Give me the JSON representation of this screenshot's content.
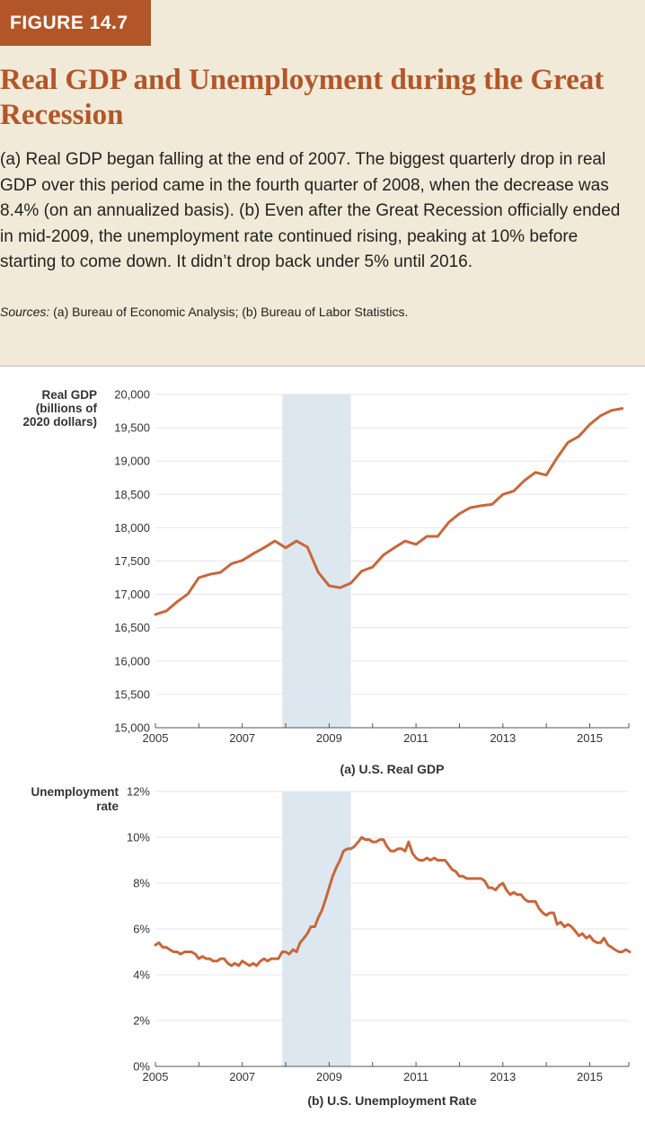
{
  "figure": {
    "label": "FIGURE 14.7",
    "title": "Real GDP and Unemployment during the Great Recession",
    "caption": "(a) Real GDP began falling at the end of 2007. The biggest quarterly drop in real GDP over this period came in the fourth quarter of 2008, when the decrease was 8.4% (on an annualized basis). (b) Even after the Great Recession officially ended in mid-2009, the unemployment rate continued rising, peaking at 10% before starting to come down. It didn’t drop back under 5% until 2016.",
    "sources_label": "Sources:",
    "sources_text": "(a) Bureau of Economic Analysis; (b) Bureau of Labor Statistics."
  },
  "colors": {
    "line": "#c8673a",
    "recession": "#dde7ef",
    "grid": "#e6e6e6",
    "header_bg": "#f1ead8",
    "accent": "#b25629"
  },
  "chart_data": [
    {
      "type": "line",
      "title": "(a) U.S. Real GDP",
      "ylabel": [
        "Real GDP",
        "(billions of",
        "2020 dollars)"
      ],
      "xlabel": "",
      "xlim": [
        2005,
        2015.9
      ],
      "ylim": [
        15000,
        20000
      ],
      "xticks": [
        2005,
        2007,
        2009,
        2011,
        2013,
        2015
      ],
      "yticks": [
        15000,
        15500,
        16000,
        16500,
        17000,
        17500,
        18000,
        18500,
        19000,
        19500,
        20000
      ],
      "ytick_labels": [
        "15,000",
        "15,500",
        "16,000",
        "16,500",
        "17,000",
        "17,500",
        "18,000",
        "18,500",
        "19,000",
        "19,500",
        "20,000"
      ],
      "grid": true,
      "recession": [
        2007.92,
        2009.5
      ],
      "series": [
        {
          "values": [
            [
              2005.0,
              16700
            ],
            [
              2005.25,
              16750
            ],
            [
              2005.5,
              16890
            ],
            [
              2005.75,
              17010
            ],
            [
              2006.0,
              17250
            ],
            [
              2006.25,
              17300
            ],
            [
              2006.5,
              17330
            ],
            [
              2006.75,
              17460
            ],
            [
              2007.0,
              17510
            ],
            [
              2007.25,
              17610
            ],
            [
              2007.5,
              17700
            ],
            [
              2007.75,
              17800
            ],
            [
              2008.0,
              17700
            ],
            [
              2008.25,
              17800
            ],
            [
              2008.5,
              17710
            ],
            [
              2008.75,
              17330
            ],
            [
              2009.0,
              17130
            ],
            [
              2009.25,
              17100
            ],
            [
              2009.5,
              17170
            ],
            [
              2009.75,
              17350
            ],
            [
              2010.0,
              17410
            ],
            [
              2010.25,
              17590
            ],
            [
              2010.5,
              17700
            ],
            [
              2010.75,
              17800
            ],
            [
              2011.0,
              17750
            ],
            [
              2011.25,
              17870
            ],
            [
              2011.5,
              17870
            ],
            [
              2011.75,
              18080
            ],
            [
              2012.0,
              18210
            ],
            [
              2012.25,
              18300
            ],
            [
              2012.5,
              18330
            ],
            [
              2012.75,
              18350
            ],
            [
              2013.0,
              18500
            ],
            [
              2013.25,
              18550
            ],
            [
              2013.5,
              18710
            ],
            [
              2013.75,
              18830
            ],
            [
              2014.0,
              18790
            ],
            [
              2014.25,
              19050
            ],
            [
              2014.5,
              19280
            ],
            [
              2014.75,
              19370
            ],
            [
              2015.0,
              19550
            ],
            [
              2015.25,
              19680
            ],
            [
              2015.5,
              19760
            ],
            [
              2015.75,
              19790
            ]
          ]
        }
      ]
    },
    {
      "type": "line",
      "title": "(b) U.S. Unemployment Rate",
      "ylabel": [
        "Unemployment",
        "rate"
      ],
      "xlabel": "",
      "xlim": [
        2005,
        2015.9
      ],
      "ylim": [
        0,
        12
      ],
      "xticks": [
        2005,
        2007,
        2009,
        2011,
        2013,
        2015
      ],
      "yticks": [
        0,
        2,
        4,
        6,
        8,
        10,
        12
      ],
      "ytick_labels": [
        "0%",
        "2%",
        "4%",
        "6%",
        "8%",
        "10%",
        "12%"
      ],
      "grid": true,
      "recession": [
        2007.92,
        2009.5
      ],
      "series": [
        {
          "values": [
            [
              2005.0,
              5.3
            ],
            [
              2005.08,
              5.4
            ],
            [
              2005.17,
              5.2
            ],
            [
              2005.25,
              5.2
            ],
            [
              2005.33,
              5.1
            ],
            [
              2005.42,
              5.0
            ],
            [
              2005.5,
              5.0
            ],
            [
              2005.58,
              4.9
            ],
            [
              2005.67,
              5.0
            ],
            [
              2005.75,
              5.0
            ],
            [
              2005.83,
              5.0
            ],
            [
              2005.92,
              4.9
            ],
            [
              2006.0,
              4.7
            ],
            [
              2006.08,
              4.8
            ],
            [
              2006.17,
              4.7
            ],
            [
              2006.25,
              4.7
            ],
            [
              2006.33,
              4.6
            ],
            [
              2006.42,
              4.6
            ],
            [
              2006.5,
              4.7
            ],
            [
              2006.58,
              4.7
            ],
            [
              2006.67,
              4.5
            ],
            [
              2006.75,
              4.4
            ],
            [
              2006.83,
              4.5
            ],
            [
              2006.92,
              4.4
            ],
            [
              2007.0,
              4.6
            ],
            [
              2007.08,
              4.5
            ],
            [
              2007.17,
              4.4
            ],
            [
              2007.25,
              4.5
            ],
            [
              2007.33,
              4.4
            ],
            [
              2007.42,
              4.6
            ],
            [
              2007.5,
              4.7
            ],
            [
              2007.58,
              4.6
            ],
            [
              2007.67,
              4.7
            ],
            [
              2007.75,
              4.7
            ],
            [
              2007.83,
              4.7
            ],
            [
              2007.92,
              5.0
            ],
            [
              2008.0,
              5.0
            ],
            [
              2008.08,
              4.9
            ],
            [
              2008.17,
              5.1
            ],
            [
              2008.25,
              5.0
            ],
            [
              2008.33,
              5.4
            ],
            [
              2008.42,
              5.6
            ],
            [
              2008.5,
              5.8
            ],
            [
              2008.58,
              6.1
            ],
            [
              2008.67,
              6.1
            ],
            [
              2008.75,
              6.5
            ],
            [
              2008.83,
              6.8
            ],
            [
              2008.92,
              7.3
            ],
            [
              2009.0,
              7.8
            ],
            [
              2009.08,
              8.3
            ],
            [
              2009.17,
              8.7
            ],
            [
              2009.25,
              9.0
            ],
            [
              2009.33,
              9.4
            ],
            [
              2009.42,
              9.5
            ],
            [
              2009.5,
              9.5
            ],
            [
              2009.58,
              9.6
            ],
            [
              2009.67,
              9.8
            ],
            [
              2009.75,
              10.0
            ],
            [
              2009.83,
              9.9
            ],
            [
              2009.92,
              9.9
            ],
            [
              2010.0,
              9.8
            ],
            [
              2010.08,
              9.8
            ],
            [
              2010.17,
              9.9
            ],
            [
              2010.25,
              9.9
            ],
            [
              2010.33,
              9.6
            ],
            [
              2010.42,
              9.4
            ],
            [
              2010.5,
              9.4
            ],
            [
              2010.58,
              9.5
            ],
            [
              2010.67,
              9.5
            ],
            [
              2010.75,
              9.4
            ],
            [
              2010.83,
              9.8
            ],
            [
              2010.92,
              9.3
            ],
            [
              2011.0,
              9.1
            ],
            [
              2011.08,
              9.0
            ],
            [
              2011.17,
              9.0
            ],
            [
              2011.25,
              9.1
            ],
            [
              2011.33,
              9.0
            ],
            [
              2011.42,
              9.1
            ],
            [
              2011.5,
              9.0
            ],
            [
              2011.58,
              9.0
            ],
            [
              2011.67,
              9.0
            ],
            [
              2011.75,
              8.8
            ],
            [
              2011.83,
              8.6
            ],
            [
              2011.92,
              8.5
            ],
            [
              2012.0,
              8.3
            ],
            [
              2012.08,
              8.3
            ],
            [
              2012.17,
              8.2
            ],
            [
              2012.25,
              8.2
            ],
            [
              2012.33,
              8.2
            ],
            [
              2012.42,
              8.2
            ],
            [
              2012.5,
              8.2
            ],
            [
              2012.58,
              8.1
            ],
            [
              2012.67,
              7.8
            ],
            [
              2012.75,
              7.8
            ],
            [
              2012.83,
              7.7
            ],
            [
              2012.92,
              7.9
            ],
            [
              2013.0,
              8.0
            ],
            [
              2013.08,
              7.7
            ],
            [
              2013.17,
              7.5
            ],
            [
              2013.25,
              7.6
            ],
            [
              2013.33,
              7.5
            ],
            [
              2013.42,
              7.5
            ],
            [
              2013.5,
              7.3
            ],
            [
              2013.58,
              7.2
            ],
            [
              2013.67,
              7.2
            ],
            [
              2013.75,
              7.2
            ],
            [
              2013.83,
              6.9
            ],
            [
              2013.92,
              6.7
            ],
            [
              2014.0,
              6.6
            ],
            [
              2014.08,
              6.7
            ],
            [
              2014.17,
              6.7
            ],
            [
              2014.25,
              6.2
            ],
            [
              2014.33,
              6.3
            ],
            [
              2014.42,
              6.1
            ],
            [
              2014.5,
              6.2
            ],
            [
              2014.58,
              6.1
            ],
            [
              2014.67,
              5.9
            ],
            [
              2014.75,
              5.7
            ],
            [
              2014.83,
              5.8
            ],
            [
              2014.92,
              5.6
            ],
            [
              2015.0,
              5.7
            ],
            [
              2015.08,
              5.5
            ],
            [
              2015.17,
              5.4
            ],
            [
              2015.25,
              5.4
            ],
            [
              2015.33,
              5.6
            ],
            [
              2015.42,
              5.3
            ],
            [
              2015.5,
              5.2
            ],
            [
              2015.58,
              5.1
            ],
            [
              2015.67,
              5.0
            ],
            [
              2015.75,
              5.0
            ],
            [
              2015.83,
              5.1
            ],
            [
              2015.92,
              5.0
            ]
          ]
        }
      ]
    }
  ]
}
